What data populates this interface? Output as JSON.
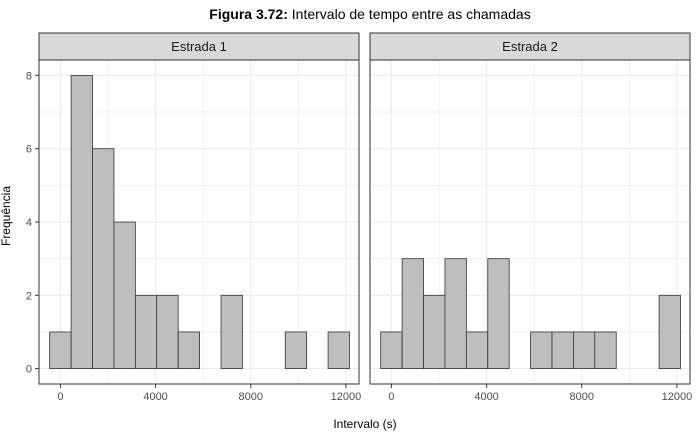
{
  "figure": {
    "title_bold": "Figura 3.72:",
    "title_rest": " Intervalo de tempo entre as chamadas"
  },
  "colors": {
    "bar_fill": "#bebebe",
    "bar_stroke": "#333333",
    "strip_fill": "#d9d9d9",
    "grid": "#ebebeb",
    "panel_border": "#333333"
  },
  "chart_data": {
    "type": "bar",
    "xlabel": "Intervalo (s)",
    "ylabel": "Frequência",
    "xlim": [
      -900,
      12550
    ],
    "ylim": [
      -0.42,
      8.42
    ],
    "xticks": [
      0,
      4000,
      8000,
      12000
    ],
    "yticks": [
      0,
      2,
      4,
      6,
      8
    ],
    "bin_width": 900,
    "panels": [
      {
        "name": "Estrada 1",
        "bins": [
          {
            "center": 0,
            "count": 1
          },
          {
            "center": 900,
            "count": 8
          },
          {
            "center": 1800,
            "count": 6
          },
          {
            "center": 2700,
            "count": 4
          },
          {
            "center": 3600,
            "count": 2
          },
          {
            "center": 4500,
            "count": 2
          },
          {
            "center": 5400,
            "count": 1
          },
          {
            "center": 6300,
            "count": 0
          },
          {
            "center": 7200,
            "count": 2
          },
          {
            "center": 8100,
            "count": 0
          },
          {
            "center": 9000,
            "count": 0
          },
          {
            "center": 9900,
            "count": 1
          },
          {
            "center": 10800,
            "count": 0
          },
          {
            "center": 11700,
            "count": 1
          }
        ]
      },
      {
        "name": "Estrada 2",
        "bins": [
          {
            "center": 0,
            "count": 1
          },
          {
            "center": 900,
            "count": 3
          },
          {
            "center": 1800,
            "count": 2
          },
          {
            "center": 2700,
            "count": 3
          },
          {
            "center": 3600,
            "count": 1
          },
          {
            "center": 4500,
            "count": 3
          },
          {
            "center": 5400,
            "count": 0
          },
          {
            "center": 6300,
            "count": 1
          },
          {
            "center": 7200,
            "count": 1
          },
          {
            "center": 8100,
            "count": 1
          },
          {
            "center": 9000,
            "count": 1
          },
          {
            "center": 9900,
            "count": 0
          },
          {
            "center": 10800,
            "count": 0
          },
          {
            "center": 11700,
            "count": 2
          }
        ]
      }
    ]
  }
}
